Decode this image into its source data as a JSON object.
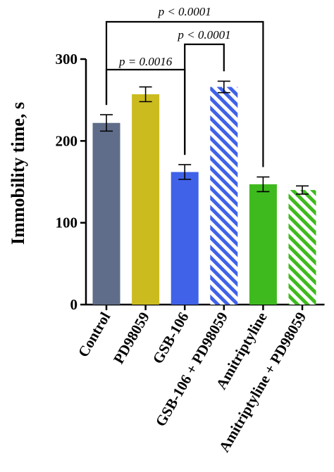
{
  "chart_data": {
    "type": "bar",
    "title": "",
    "xlabel": "",
    "ylabel": "Immobility time, s",
    "ylim": [
      0,
      300
    ],
    "yticks": [
      0,
      100,
      200,
      300
    ],
    "categories": [
      "Control",
      "PD98059",
      "GSB-106",
      "GSB-106 + PD98059",
      "Amitriptyline",
      "Amitriptyline + PD98059"
    ],
    "values": [
      222,
      257,
      162,
      266,
      147,
      140
    ],
    "errors": [
      10,
      9,
      9,
      7,
      9,
      5
    ],
    "colors": [
      "#5f6d8a",
      "#cbbb1f",
      "#3f62e8",
      "#3f62e8",
      "#3fba1e",
      "#3fba1e"
    ],
    "hatched": [
      false,
      false,
      false,
      true,
      false,
      true
    ],
    "significance": [
      {
        "from": "Control",
        "to": "GSB-106",
        "label": "p = 0.0016"
      },
      {
        "from": "GSB-106",
        "to": "GSB-106 + PD98059",
        "label": "p < 0.0001"
      },
      {
        "from": "Control",
        "to": "Amitriptyline",
        "label": "p < 0.0001"
      }
    ],
    "grid": false,
    "legend": "none"
  }
}
